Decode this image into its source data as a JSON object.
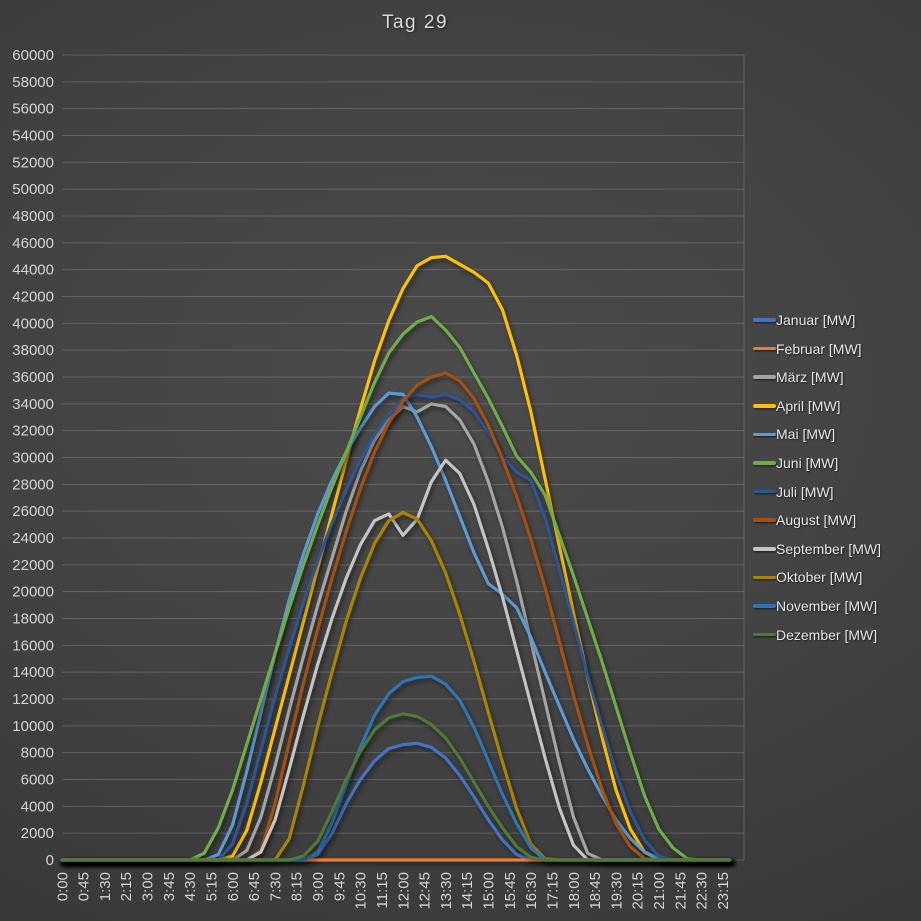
{
  "chart_data": {
    "type": "line",
    "title": "Tag 29",
    "ylabel": "",
    "xlabel": "",
    "ylim": [
      0,
      60000
    ],
    "y_tick_step": 2000,
    "y_ticks": [
      "0",
      "2000",
      "4000",
      "6000",
      "8000",
      "10000",
      "12000",
      "14000",
      "16000",
      "18000",
      "20000",
      "22000",
      "24000",
      "26000",
      "28000",
      "30000",
      "32000",
      "34000",
      "36000",
      "38000",
      "40000",
      "42000",
      "44000",
      "46000",
      "48000",
      "50000",
      "52000",
      "54000",
      "56000",
      "58000",
      "60000"
    ],
    "x_tick_labels": [
      "0:00",
      "0:45",
      "1:30",
      "2:15",
      "3:00",
      "3:45",
      "4:30",
      "5:15",
      "6:00",
      "6:45",
      "7:30",
      "8:15",
      "9:00",
      "9:45",
      "10:30",
      "11:15",
      "12:00",
      "12:45",
      "13:30",
      "14:15",
      "15:00",
      "15:45",
      "16:30",
      "17:15",
      "18:00",
      "18:45",
      "19:30",
      "20:15",
      "21:00",
      "21:45",
      "22:30",
      "23:15"
    ],
    "x_step_minutes": 30,
    "x_start": "0:00",
    "legend_position": "right",
    "grid": "horizontal",
    "series": [
      {
        "name": "Januar [MW]",
        "color": "#4472C4",
        "values": [
          0,
          0,
          0,
          0,
          0,
          0,
          0,
          0,
          0,
          0,
          0,
          0,
          0,
          0,
          0,
          0,
          0,
          0,
          400,
          2000,
          4200,
          6000,
          7400,
          8300,
          8600,
          8700,
          8400,
          7600,
          6300,
          4700,
          3000,
          1500,
          400,
          0,
          0,
          0,
          0,
          0,
          0,
          0,
          0,
          0,
          0,
          0,
          0,
          0,
          0,
          0
        ]
      },
      {
        "name": "Februar [MW]",
        "color": "#ED7D31",
        "values": [
          0,
          0,
          0,
          0,
          0,
          0,
          0,
          0,
          0,
          0,
          0,
          0,
          0,
          0,
          0,
          0,
          0,
          0,
          0,
          0,
          0,
          0,
          0,
          0,
          0,
          0,
          0,
          0,
          0,
          0,
          0,
          0,
          0,
          0,
          0,
          0,
          0,
          0,
          0,
          0,
          0,
          0,
          0,
          0,
          0,
          0,
          0,
          0
        ]
      },
      {
        "name": "März [MW]",
        "color": "#A5A5A5",
        "values": [
          0,
          0,
          0,
          0,
          0,
          0,
          0,
          0,
          0,
          0,
          0,
          0,
          0,
          700,
          3200,
          7000,
          11200,
          15200,
          19000,
          22500,
          26000,
          29000,
          31300,
          32800,
          33800,
          33400,
          34000,
          33800,
          32800,
          31000,
          28200,
          24800,
          20800,
          16300,
          11800,
          7300,
          3200,
          500,
          0,
          0,
          0,
          0,
          0,
          0,
          0,
          0,
          0,
          0
        ]
      },
      {
        "name": "April [MW]",
        "color": "#FFC000",
        "values": [
          0,
          0,
          0,
          0,
          0,
          0,
          0,
          0,
          0,
          0,
          0,
          0,
          300,
          2200,
          5800,
          9800,
          13800,
          17800,
          21800,
          25800,
          29800,
          33600,
          37200,
          40200,
          42600,
          44300,
          44900,
          45000,
          44400,
          43800,
          43000,
          41000,
          37600,
          33400,
          28400,
          23400,
          18400,
          13600,
          9200,
          5200,
          2300,
          600,
          0,
          0,
          0,
          0,
          0,
          0
        ]
      },
      {
        "name": "Mai [MW]",
        "color": "#5B9BD5",
        "values": [
          0,
          0,
          0,
          0,
          0,
          0,
          0,
          0,
          0,
          0,
          0,
          400,
          2600,
          6600,
          11000,
          15400,
          19400,
          22800,
          25800,
          28300,
          30400,
          32200,
          33800,
          34800,
          34700,
          33000,
          30800,
          28300,
          25600,
          22900,
          20600,
          19800,
          18800,
          16600,
          14000,
          11500,
          9000,
          6800,
          4800,
          3000,
          1600,
          600,
          100,
          0,
          0,
          0,
          0,
          0
        ]
      },
      {
        "name": "Juni [MW]",
        "color": "#70AD47",
        "values": [
          0,
          0,
          0,
          0,
          0,
          0,
          0,
          0,
          0,
          0,
          500,
          2400,
          5200,
          8600,
          12000,
          15400,
          18800,
          22000,
          25000,
          27800,
          30400,
          33000,
          35600,
          37800,
          39200,
          40100,
          40500,
          39500,
          38200,
          36300,
          34400,
          32300,
          30100,
          28900,
          27200,
          24200,
          21200,
          18000,
          14800,
          11400,
          8000,
          4800,
          2300,
          900,
          100,
          0,
          0,
          0
        ]
      },
      {
        "name": "Juli [MW]",
        "color": "#2D5596",
        "values": [
          0,
          0,
          0,
          0,
          0,
          0,
          0,
          0,
          0,
          0,
          0,
          0,
          1200,
          4200,
          8200,
          12200,
          15800,
          19200,
          22300,
          25100,
          27600,
          29800,
          31700,
          33200,
          34400,
          34700,
          34500,
          34700,
          34300,
          33400,
          31900,
          30100,
          28900,
          28300,
          25500,
          21700,
          17700,
          13700,
          10000,
          6500,
          3600,
          1500,
          300,
          0,
          0,
          0,
          0,
          0
        ]
      },
      {
        "name": "August [MW]",
        "color": "#A5500F",
        "values": [
          0,
          0,
          0,
          0,
          0,
          0,
          0,
          0,
          0,
          0,
          0,
          0,
          0,
          0,
          700,
          4200,
          8800,
          13200,
          17200,
          21000,
          24500,
          27700,
          30400,
          32600,
          34200,
          35400,
          36000,
          36300,
          35700,
          34400,
          32400,
          29900,
          27100,
          23900,
          20300,
          16300,
          12300,
          8600,
          5300,
          2700,
          1000,
          100,
          0,
          0,
          0,
          0,
          0,
          0
        ]
      },
      {
        "name": "September [MW]",
        "color": "#C4C4C4",
        "values": [
          0,
          0,
          0,
          0,
          0,
          0,
          0,
          0,
          0,
          0,
          0,
          0,
          0,
          0,
          600,
          3000,
          6800,
          10800,
          14600,
          18000,
          21000,
          23500,
          25300,
          25800,
          24200,
          25400,
          28200,
          29800,
          28800,
          26500,
          23200,
          19600,
          15600,
          11600,
          7600,
          3900,
          1100,
          0,
          0,
          0,
          0,
          0,
          0,
          0,
          0,
          0,
          0,
          0
        ]
      },
      {
        "name": "Oktober [MW]",
        "color": "#AA8300",
        "values": [
          0,
          0,
          0,
          0,
          0,
          0,
          0,
          0,
          0,
          0,
          0,
          0,
          0,
          0,
          0,
          0,
          1600,
          5600,
          10000,
          14000,
          17800,
          21000,
          23600,
          25300,
          25900,
          25400,
          23800,
          21400,
          18300,
          14800,
          11000,
          7300,
          3800,
          1200,
          100,
          0,
          0,
          0,
          0,
          0,
          0,
          0,
          0,
          0,
          0,
          0,
          0,
          0
        ]
      },
      {
        "name": "November [MW]",
        "color": "#2E75B6",
        "values": [
          0,
          0,
          0,
          0,
          0,
          0,
          0,
          0,
          0,
          0,
          0,
          0,
          0,
          0,
          0,
          0,
          0,
          0,
          600,
          2800,
          5600,
          8400,
          10800,
          12400,
          13300,
          13600,
          13700,
          13100,
          11900,
          9900,
          7400,
          4900,
          2700,
          900,
          0,
          0,
          0,
          0,
          0,
          0,
          0,
          0,
          0,
          0,
          0,
          0,
          0,
          0
        ]
      },
      {
        "name": "Dezember [MW]",
        "color": "#4E7A34",
        "values": [
          0,
          0,
          0,
          0,
          0,
          0,
          0,
          0,
          0,
          0,
          0,
          0,
          0,
          0,
          0,
          0,
          0,
          300,
          1400,
          3600,
          6000,
          8100,
          9700,
          10600,
          10900,
          10700,
          10100,
          9100,
          7600,
          5800,
          4000,
          2400,
          1000,
          200,
          0,
          0,
          0,
          0,
          0,
          0,
          0,
          0,
          0,
          0,
          0,
          0,
          0,
          0
        ]
      }
    ]
  }
}
